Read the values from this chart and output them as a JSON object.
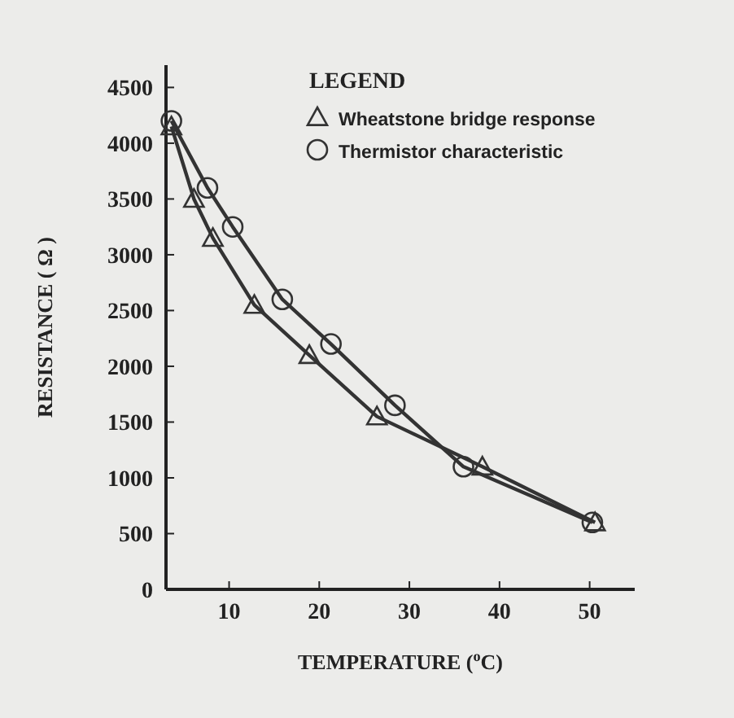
{
  "chart_data": {
    "type": "line",
    "xlabel": "TEMPERATURE ($^{o}$C)",
    "ylabel": "RESISTANCE ( Ω )",
    "legend_title": "LEGEND",
    "legend": "top right",
    "xlim": [
      3,
      55
    ],
    "ylim": [
      0,
      4700
    ],
    "xticks": [
      10,
      20,
      30,
      40,
      50
    ],
    "yticks": [
      0,
      500,
      1000,
      1500,
      2000,
      2500,
      3000,
      3500,
      4000,
      4500
    ],
    "series": [
      {
        "name": "Wheatstone bridge response",
        "color": "#333333",
        "marker": "triangle",
        "x": [
          3.6,
          6.1,
          8.2,
          12.8,
          18.9,
          26.4,
          38.1,
          50.6
        ],
        "values": [
          4150,
          3500,
          3150,
          2550,
          2100,
          1550,
          1100,
          600
        ]
      },
      {
        "name": "Thermistor characteristic",
        "color": "#333333",
        "marker": "circle",
        "x": [
          3.6,
          7.6,
          10.4,
          15.9,
          21.3,
          28.4,
          36,
          50.3
        ],
        "values": [
          4200,
          3600,
          3250,
          2600,
          2200,
          1650,
          1100,
          600
        ]
      }
    ]
  }
}
